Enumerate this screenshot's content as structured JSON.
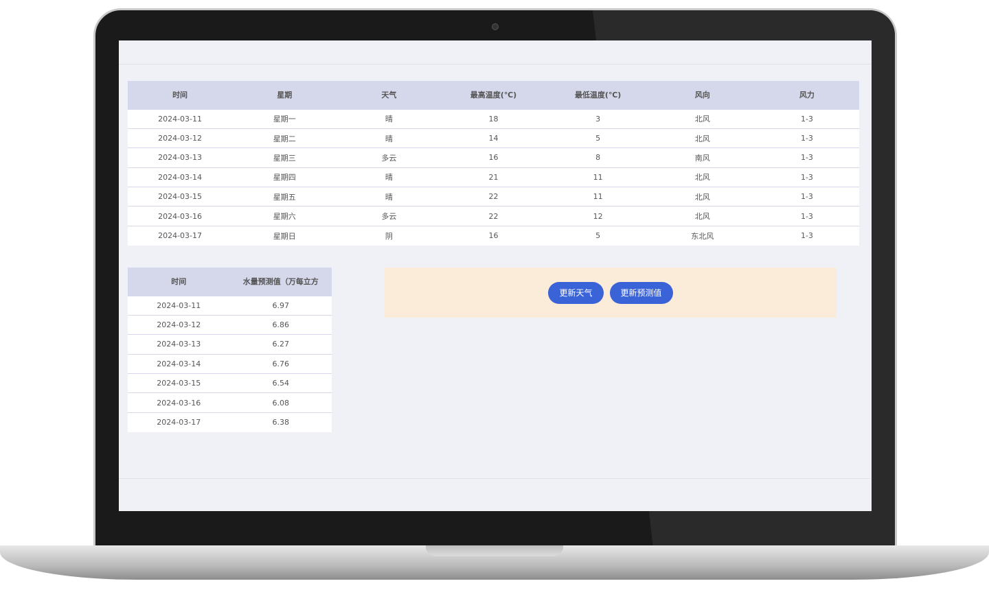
{
  "weather": {
    "headers": [
      "时间",
      "星期",
      "天气",
      "最高温度(℃)",
      "最低温度(℃)",
      "风向",
      "风力"
    ],
    "rows": [
      [
        "2024-03-11",
        "星期一",
        "晴",
        "18",
        "3",
        "北风",
        "1-3"
      ],
      [
        "2024-03-12",
        "星期二",
        "晴",
        "14",
        "5",
        "北风",
        "1-3"
      ],
      [
        "2024-03-13",
        "星期三",
        "多云",
        "16",
        "8",
        "南风",
        "1-3"
      ],
      [
        "2024-03-14",
        "星期四",
        "晴",
        "21",
        "11",
        "北风",
        "1-3"
      ],
      [
        "2024-03-15",
        "星期五",
        "晴",
        "22",
        "11",
        "北风",
        "1-3"
      ],
      [
        "2024-03-16",
        "星期六",
        "多云",
        "22",
        "12",
        "北风",
        "1-3"
      ],
      [
        "2024-03-17",
        "星期日",
        "阴",
        "16",
        "5",
        "东北风",
        "1-3"
      ]
    ]
  },
  "forecast": {
    "headers": [
      "时间",
      "水量预测值（万每立方"
    ],
    "rows": [
      [
        "2024-03-11",
        "6.97"
      ],
      [
        "2024-03-12",
        "6.86"
      ],
      [
        "2024-03-13",
        "6.27"
      ],
      [
        "2024-03-14",
        "6.76"
      ],
      [
        "2024-03-15",
        "6.54"
      ],
      [
        "2024-03-16",
        "6.08"
      ],
      [
        "2024-03-17",
        "6.38"
      ]
    ]
  },
  "actions": {
    "update_weather": "更新天气",
    "update_forecast": "更新预测值"
  }
}
